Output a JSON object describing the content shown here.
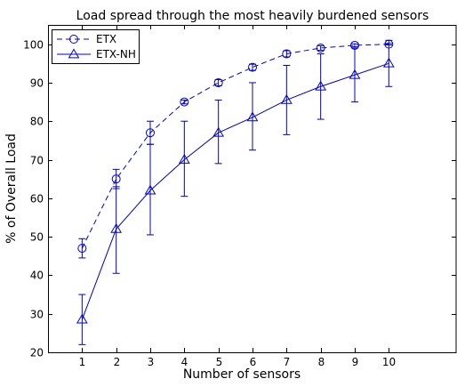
{
  "chart_data": {
    "type": "line",
    "title": "Load spread through the most heavily burdened sensors",
    "xlabel": "Number of sensors",
    "ylabel": "% of Overall Load",
    "xlim": [
      0,
      12
    ],
    "ylim": [
      20,
      105
    ],
    "x_ticks": [
      1,
      2,
      3,
      4,
      5,
      6,
      7,
      8,
      9,
      10
    ],
    "y_ticks": [
      20,
      30,
      40,
      50,
      60,
      70,
      80,
      90,
      100
    ],
    "grid": false,
    "legend_position": "top-left",
    "x": [
      1,
      2,
      3,
      4,
      5,
      6,
      7,
      8,
      9,
      10
    ],
    "series": [
      {
        "name": "ETX",
        "color": "#0000cc",
        "line_style": "dashed",
        "marker": "circle",
        "values": [
          47,
          65,
          77,
          85,
          90,
          94,
          97.5,
          99,
          99.7,
          100
        ],
        "error_low": [
          2.5,
          2.5,
          3,
          0.5,
          0.8,
          0.8,
          0.8,
          0.6,
          0.4,
          0.2
        ],
        "error_high": [
          2.5,
          2.5,
          3,
          0.5,
          0.8,
          0.8,
          0.8,
          0.6,
          0.4,
          0.2
        ]
      },
      {
        "name": "ETX-NH",
        "color": "#0000cc",
        "line_style": "solid",
        "marker": "triangle",
        "values": [
          28.5,
          52,
          62,
          70,
          77,
          81,
          85.5,
          89,
          92,
          95
        ],
        "error_low": [
          6.5,
          11.5,
          11.5,
          9.5,
          8,
          8.5,
          9,
          8.5,
          7,
          6
        ],
        "error_high": [
          6.5,
          11,
          12,
          10,
          8.5,
          9,
          9,
          8.5,
          7,
          6
        ]
      }
    ]
  }
}
